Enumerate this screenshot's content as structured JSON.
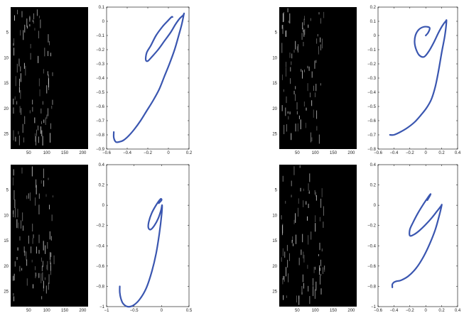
{
  "colors": {
    "trace": "#3a56b0",
    "raster_bg": "#000000",
    "raster_spike": "#cfcfcf",
    "axis": "#000000"
  },
  "chart_data": [
    {
      "type": "heatmap",
      "name": "raster-top-left",
      "xlim": [
        0,
        215
      ],
      "ylim": [
        28,
        0
      ],
      "xticks": [
        "50",
        "100",
        "150",
        "200"
      ],
      "xtick_values": [
        50,
        100,
        150,
        200
      ],
      "yticks": [
        "5",
        "10",
        "15",
        "20",
        "25"
      ],
      "ytick_values": [
        5,
        10,
        15,
        20,
        25
      ],
      "active_columns": [
        5,
        120
      ]
    },
    {
      "type": "line",
      "name": "trajectory-top-left",
      "xlim": [
        -0.6,
        0.2
      ],
      "ylim": [
        -0.9,
        0.1
      ],
      "xticks": [
        "−0.6",
        "−0.4",
        "−0.2",
        "0",
        "0.2"
      ],
      "xtick_values": [
        -0.6,
        -0.4,
        -0.2,
        0,
        0.2
      ],
      "yticks": [
        "0.1",
        "0",
        "−0.1",
        "−0.2",
        "−0.3",
        "−0.4",
        "−0.5",
        "−0.6",
        "−0.7",
        "−0.8",
        "−0.9"
      ],
      "ytick_values": [
        0.1,
        0,
        -0.1,
        -0.2,
        -0.3,
        -0.4,
        -0.5,
        -0.6,
        -0.7,
        -0.8,
        -0.9
      ],
      "x": [
        0.04,
        0.03,
        -0.01,
        -0.06,
        -0.12,
        -0.17,
        -0.21,
        -0.22,
        -0.2,
        -0.16,
        -0.1,
        -0.04,
        0.02,
        0.07,
        0.11,
        0.14,
        0.15,
        0.15,
        0.13,
        0.1,
        0.06,
        0.01,
        -0.04,
        -0.09,
        -0.15,
        -0.21,
        -0.27,
        -0.33,
        -0.39,
        -0.44,
        -0.48,
        -0.51,
        -0.53,
        -0.53
      ],
      "y": [
        0.03,
        0.03,
        0.0,
        -0.04,
        -0.1,
        -0.17,
        -0.22,
        -0.27,
        -0.28,
        -0.25,
        -0.2,
        -0.14,
        -0.08,
        -0.02,
        0.02,
        0.04,
        0.05,
        0.05,
        -0.02,
        -0.1,
        -0.2,
        -0.3,
        -0.39,
        -0.48,
        -0.56,
        -0.63,
        -0.7,
        -0.76,
        -0.81,
        -0.84,
        -0.85,
        -0.85,
        -0.82,
        -0.78
      ]
    },
    {
      "type": "heatmap",
      "name": "raster-top-right",
      "xlim": [
        0,
        215
      ],
      "ylim": [
        28,
        0
      ],
      "xticks": [
        "50",
        "100",
        "150",
        "200"
      ],
      "xtick_values": [
        50,
        100,
        150,
        200
      ],
      "yticks": [
        "5",
        "10",
        "15",
        "20",
        "25"
      ],
      "ytick_values": [
        5,
        10,
        15,
        20,
        25
      ],
      "active_columns": [
        5,
        125
      ]
    },
    {
      "type": "line",
      "name": "trajectory-top-right",
      "xlim": [
        -0.6,
        0.4
      ],
      "ylim": [
        -0.8,
        0.2
      ],
      "xticks": [
        "−0.6",
        "−0.4",
        "−0.2",
        "0",
        "0.2",
        "0.4"
      ],
      "xtick_values": [
        -0.6,
        -0.4,
        -0.2,
        0,
        0.2,
        0.4
      ],
      "yticks": [
        "0.2",
        "0.1",
        "0",
        "−0.1",
        "−0.2",
        "−0.3",
        "−0.4",
        "−0.5",
        "−0.6",
        "−0.7",
        "−0.8"
      ],
      "ytick_values": [
        0.2,
        0.1,
        0,
        -0.1,
        -0.2,
        -0.3,
        -0.4,
        -0.5,
        -0.6,
        -0.7,
        -0.8
      ],
      "x": [
        0.0,
        0.03,
        0.05,
        0.03,
        -0.03,
        -0.09,
        -0.13,
        -0.14,
        -0.12,
        -0.08,
        -0.02,
        0.04,
        0.1,
        0.16,
        0.21,
        0.25,
        0.26,
        0.24,
        0.2,
        0.16,
        0.12,
        0.07,
        0.01,
        -0.06,
        -0.14,
        -0.23,
        -0.32,
        -0.4,
        -0.45
      ],
      "y": [
        0.0,
        0.02,
        0.05,
        0.06,
        0.06,
        0.04,
        0.0,
        -0.05,
        -0.1,
        -0.14,
        -0.15,
        -0.11,
        -0.05,
        0.02,
        0.07,
        0.1,
        0.1,
        0.0,
        -0.12,
        -0.25,
        -0.36,
        -0.45,
        -0.51,
        -0.56,
        -0.61,
        -0.65,
        -0.68,
        -0.7,
        -0.7
      ]
    },
    {
      "type": "heatmap",
      "name": "raster-bottom-left",
      "xlim": [
        0,
        215
      ],
      "ylim": [
        28,
        0
      ],
      "xticks": [
        "50",
        "100",
        "150",
        "200"
      ],
      "xtick_values": [
        50,
        100,
        150,
        200
      ],
      "yticks": [
        "5",
        "10",
        "15",
        "20",
        "25"
      ],
      "ytick_values": [
        5,
        10,
        15,
        20,
        25
      ],
      "active_columns": [
        5,
        120
      ]
    },
    {
      "type": "line",
      "name": "trajectory-bottom-left",
      "xlim": [
        -1,
        0.5
      ],
      "ylim": [
        -1,
        0.4
      ],
      "xticks": [
        "−1",
        "−0.5",
        "0",
        "0.5"
      ],
      "xtick_values": [
        -1,
        -0.5,
        0,
        0.5
      ],
      "yticks": [
        "0.4",
        "0.2",
        "0",
        "−0.2",
        "−0.4",
        "−0.6",
        "−0.8",
        "−1"
      ],
      "ytick_values": [
        0.4,
        0.2,
        0,
        -0.2,
        -0.4,
        -0.6,
        -0.8,
        -1
      ],
      "x": [
        -0.05,
        0.0,
        -0.02,
        -0.1,
        -0.18,
        -0.23,
        -0.24,
        -0.2,
        -0.13,
        -0.06,
        -0.01,
        0.01,
        0.0,
        -0.04,
        -0.1,
        -0.18,
        -0.28,
        -0.4,
        -0.52,
        -0.62,
        -0.7,
        -0.74,
        -0.76,
        -0.76
      ],
      "y": [
        0.02,
        0.05,
        0.06,
        0.0,
        -0.08,
        -0.16,
        -0.22,
        -0.24,
        -0.2,
        -0.13,
        -0.05,
        0.0,
        -0.1,
        -0.28,
        -0.48,
        -0.66,
        -0.82,
        -0.93,
        -0.99,
        -1.0,
        -0.97,
        -0.92,
        -0.86,
        -0.8
      ]
    },
    {
      "type": "heatmap",
      "name": "raster-bottom-right",
      "xlim": [
        0,
        215
      ],
      "ylim": [
        28,
        0
      ],
      "xticks": [
        "50",
        "100",
        "150",
        "200"
      ],
      "xtick_values": [
        50,
        100,
        150,
        200
      ],
      "yticks": [
        "5",
        "10",
        "15",
        "20",
        "25"
      ],
      "ytick_values": [
        5,
        10,
        15,
        20,
        25
      ],
      "active_columns": [
        5,
        125
      ]
    },
    {
      "type": "line",
      "name": "trajectory-bottom-right",
      "xlim": [
        -0.6,
        0.4
      ],
      "ylim": [
        -1,
        0.4
      ],
      "xticks": [
        "−0.6",
        "−0.4",
        "−0.2",
        "0",
        "0.2",
        "0.4"
      ],
      "xtick_values": [
        -0.6,
        -0.4,
        -0.2,
        0,
        0.2,
        0.4
      ],
      "yticks": [
        "0.4",
        "0.2",
        "0",
        "−0.2",
        "−0.4",
        "−0.6",
        "−0.8",
        "−1"
      ],
      "ytick_values": [
        0.4,
        0.2,
        0,
        -0.2,
        -0.4,
        -0.6,
        -0.8,
        -1
      ],
      "x": [
        0.02,
        0.05,
        0.06,
        0.03,
        -0.03,
        -0.1,
        -0.16,
        -0.2,
        -0.2,
        -0.15,
        -0.08,
        0.0,
        0.08,
        0.14,
        0.19,
        0.2,
        0.17,
        0.12,
        0.05,
        -0.03,
        -0.12,
        -0.22,
        -0.31,
        -0.37,
        -0.4,
        -0.42,
        -0.42
      ],
      "y": [
        0.05,
        0.09,
        0.11,
        0.08,
        0.01,
        -0.08,
        -0.17,
        -0.24,
        -0.3,
        -0.29,
        -0.25,
        -0.19,
        -0.12,
        -0.06,
        -0.01,
        0.0,
        -0.1,
        -0.24,
        -0.38,
        -0.51,
        -0.62,
        -0.7,
        -0.74,
        -0.75,
        -0.76,
        -0.78,
        -0.81
      ]
    }
  ]
}
